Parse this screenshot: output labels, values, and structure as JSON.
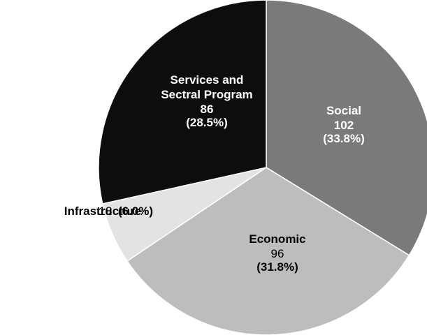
{
  "chart_data": {
    "type": "pie",
    "title": "",
    "slices": [
      {
        "label": "Social",
        "label_lines": [
          "Social"
        ],
        "value": 102,
        "value_text": "102",
        "percent_text": "(33.8%)",
        "color": "#7a7a7a",
        "text_color": "#ffffff"
      },
      {
        "label": "Economic",
        "label_lines": [
          "Economic"
        ],
        "value": 96,
        "value_text": "96",
        "percent_text": "(31.8%)",
        "color": "#bdbdbd",
        "text_color": "#000000"
      },
      {
        "label": "Infrastructure",
        "label_lines": [
          "Infrastructure"
        ],
        "value": 18,
        "value_text": "18",
        "percent_text": "(6.0%)",
        "color": "#e3e3e3",
        "text_color": "#000000"
      },
      {
        "label": "Services and Sectral Program",
        "label_lines": [
          "Services and",
          "Sectral Program"
        ],
        "value": 86,
        "value_text": "86",
        "percent_text": "(28.5%)",
        "color": "#0d0d0d",
        "text_color": "#ffffff"
      }
    ],
    "legend": "none",
    "start": "12 o'clock, clockwise"
  }
}
